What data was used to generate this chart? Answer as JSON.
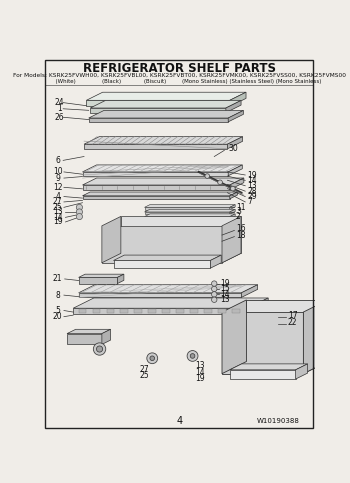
{
  "title": "REFRIGERATOR SHELF PARTS",
  "subtitle_line1": "For Models: KSRK25FVWH00, KSRK25FVBL00, KSRK25FVBT00, KSRK25FVMK00, KSRK25FVSS00, KSRK25FVMS00",
  "subtitle_line2": "          (White)               (Black)             (Biscuit)         (Mono Stainless) (Stainless Steel) (Mono Stainless)",
  "page_number": "4",
  "part_number": "W10190388",
  "bg_color": "#f0ede8",
  "border_color": "#222222",
  "text_color": "#111111",
  "line_color": "#333333"
}
